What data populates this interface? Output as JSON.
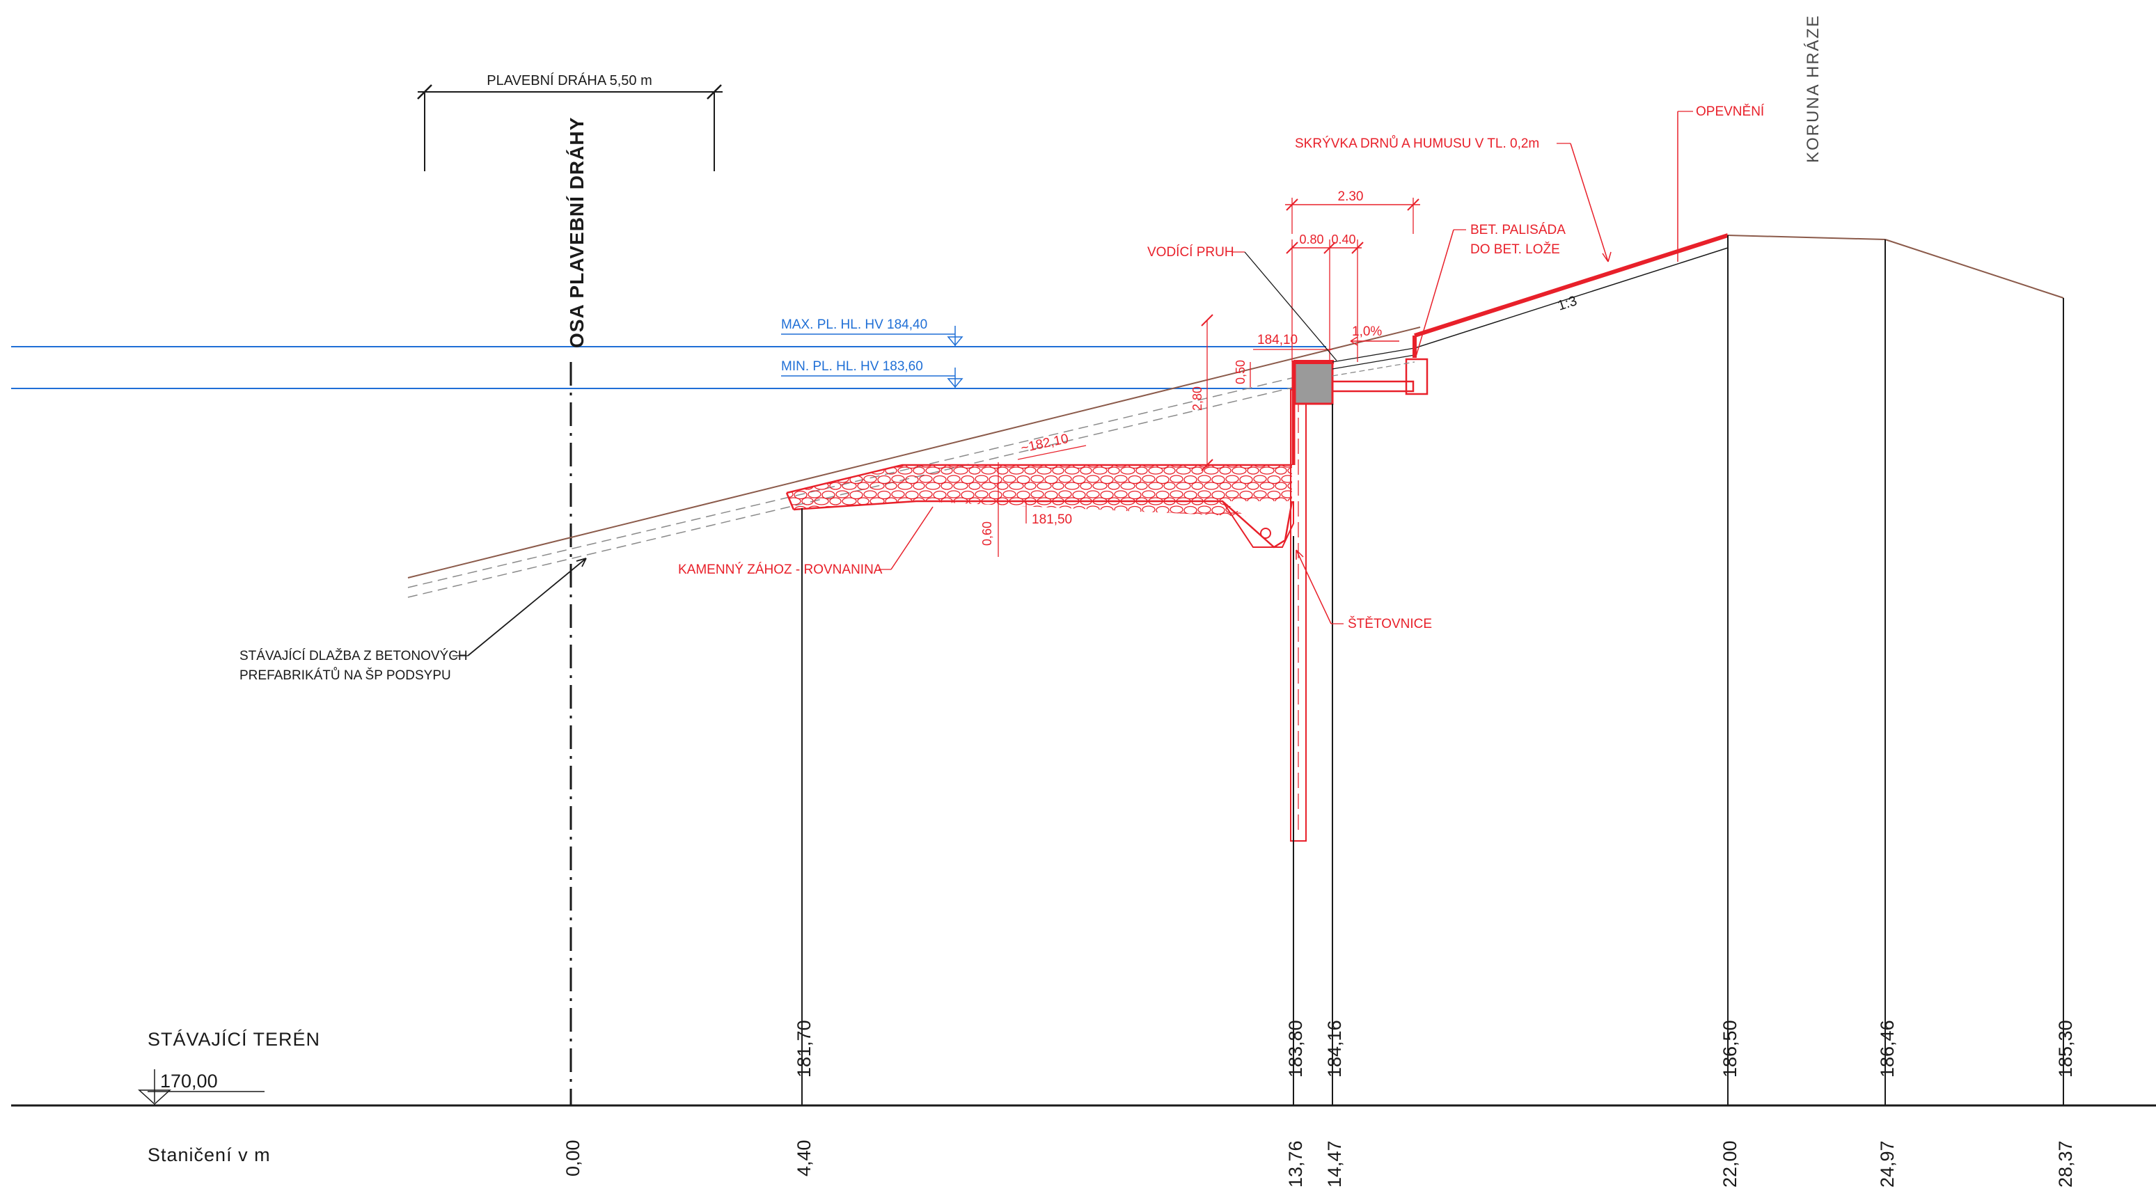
{
  "labels": {
    "navigation_width": "PLAVEBNÍ DRÁHA 5,50 m",
    "navigation_axis": "OSA PLAVEBNÍ DRÁHY",
    "dam_crest": "KORUNA HRÁZE",
    "reinforcement": "OPEVNĚNÍ",
    "topsoil_removal": "SKRÝVKA DRNŮ A HUMUSU V TL. 0,2m",
    "dim_total": "2.30",
    "dim_a": "0.80",
    "dim_b": "0.40",
    "guide_strip": "VODÍCÍ PRUH",
    "palisade_line1": "BET. PALISÁDA",
    "palisade_line2": "DO BET. LOŽE",
    "max_level": "MAX. PL. HL. HV 184,40",
    "min_level": "MIN. PL. HL. HV 183,60",
    "elev_184_10": "184,10",
    "slope_pct": "1,0%",
    "dim_2_80": "2,80",
    "dim_0_50": "0,50",
    "slope_ratio": "1:3",
    "elev_182_10": "~182,10",
    "elev_181_50": "181,50",
    "dim_0_60": "0,60",
    "riprap": "KAMENNÝ ZÁHOZ - ROVNANINA",
    "sheet_pile": "ŠTĚTOVNICE",
    "paving_line1": "STÁVAJÍCÍ DLAŽBA Z BETONOVÝCH",
    "paving_line2": "PREFABRIKÁTŮ NA ŠP PODSYPU",
    "existing_terrain": "STÁVAJÍCÍ TERÉN",
    "datum": "170,00",
    "stationing": "Staničení v m"
  },
  "profile_points": [
    {
      "elevation": "181,70",
      "station": "4,40"
    },
    {
      "elevation": "183,80",
      "station": "13,76"
    },
    {
      "elevation": "184,16",
      "station": "14,47"
    },
    {
      "elevation": "186,50",
      "station": "22,00"
    },
    {
      "elevation": "186,46",
      "station": "24,97"
    },
    {
      "elevation": "185,30",
      "station": "28,37"
    }
  ],
  "axis_station": "0,00",
  "colors": {
    "structure": "#e8202a",
    "water": "#1f6fd6",
    "terrain": "#8b5a4a",
    "ink": "#1a1a1a"
  }
}
